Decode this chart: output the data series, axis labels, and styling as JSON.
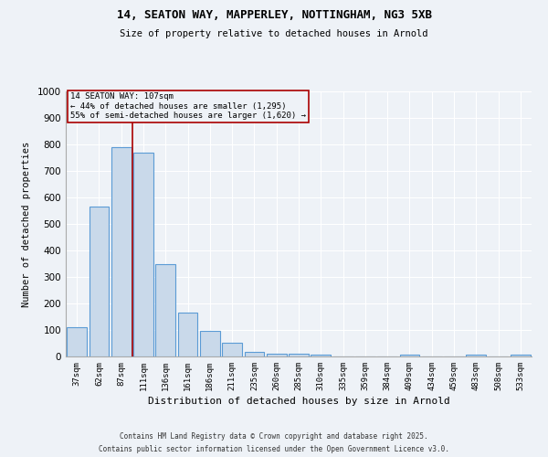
{
  "title_line1": "14, SEATON WAY, MAPPERLEY, NOTTINGHAM, NG3 5XB",
  "title_line2": "Size of property relative to detached houses in Arnold",
  "xlabel": "Distribution of detached houses by size in Arnold",
  "ylabel": "Number of detached properties",
  "bar_labels": [
    "37sqm",
    "62sqm",
    "87sqm",
    "111sqm",
    "136sqm",
    "161sqm",
    "186sqm",
    "211sqm",
    "235sqm",
    "260sqm",
    "285sqm",
    "310sqm",
    "335sqm",
    "359sqm",
    "384sqm",
    "409sqm",
    "434sqm",
    "459sqm",
    "483sqm",
    "508sqm",
    "533sqm"
  ],
  "bar_values": [
    111,
    565,
    790,
    770,
    350,
    165,
    95,
    52,
    18,
    12,
    12,
    8,
    0,
    0,
    0,
    8,
    0,
    0,
    8,
    0,
    8
  ],
  "bar_color": "#c9d9ea",
  "bar_edge_color": "#5b9bd5",
  "ylim": [
    0,
    1000
  ],
  "yticks": [
    0,
    100,
    200,
    300,
    400,
    500,
    600,
    700,
    800,
    900,
    1000
  ],
  "red_line_x": 2.5,
  "red_line_color": "#aa0000",
  "annotation_text": "14 SEATON WAY: 107sqm\n← 44% of detached houses are smaller (1,295)\n55% of semi-detached houses are larger (1,620) →",
  "background_color": "#eef2f7",
  "grid_color": "#ffffff",
  "footer_line1": "Contains HM Land Registry data © Crown copyright and database right 2025.",
  "footer_line2": "Contains public sector information licensed under the Open Government Licence v3.0."
}
